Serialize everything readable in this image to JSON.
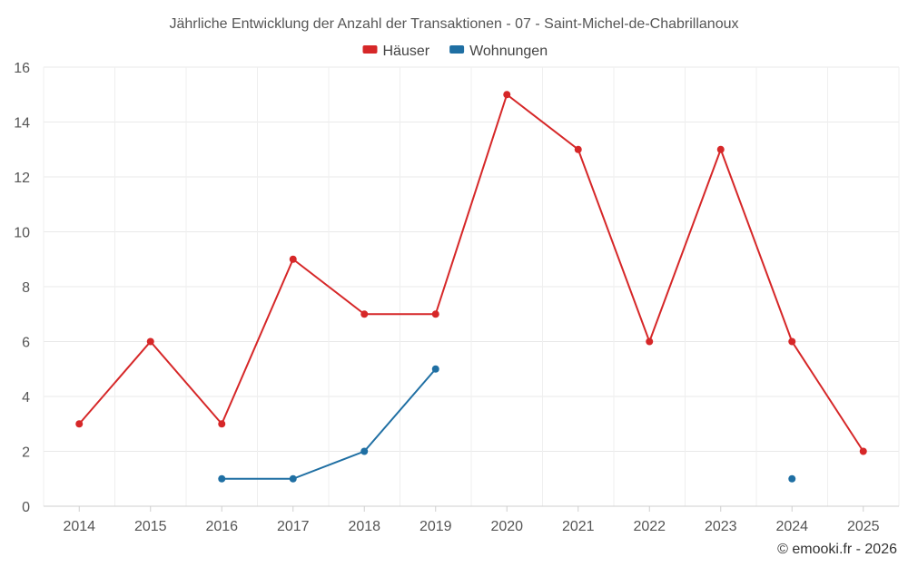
{
  "chart_data": {
    "type": "line",
    "title": "Jährliche Entwicklung der Anzahl der Transaktionen - 07 - Saint-Michel-de-Chabrillanoux",
    "categories": [
      "2014",
      "2015",
      "2016",
      "2017",
      "2018",
      "2019",
      "2020",
      "2021",
      "2022",
      "2023",
      "2024",
      "2025"
    ],
    "ylim": [
      0,
      16
    ],
    "yticks": [
      0,
      2,
      4,
      6,
      8,
      10,
      12,
      14,
      16
    ],
    "grid": true,
    "legend_position": "top-center",
    "series": [
      {
        "name": "Häuser",
        "color": "#d62728",
        "values": [
          3,
          6,
          3,
          9,
          7,
          7,
          15,
          13,
          6,
          13,
          6,
          2
        ]
      },
      {
        "name": "Wohnungen",
        "color": "#1f6fa3",
        "values": [
          null,
          null,
          1,
          1,
          2,
          5,
          null,
          null,
          null,
          null,
          1,
          null
        ]
      }
    ],
    "credit": "© emooki.fr - 2026"
  }
}
